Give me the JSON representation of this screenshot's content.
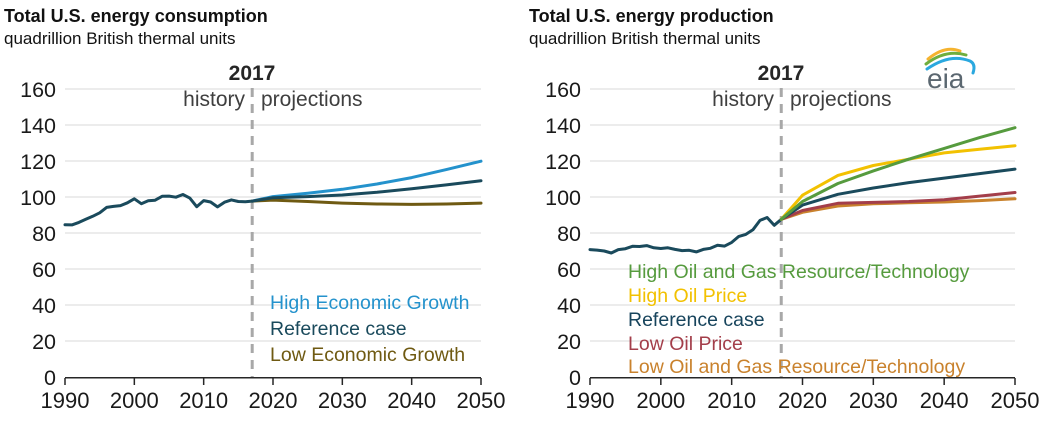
{
  "page": {
    "background": "#ffffff"
  },
  "logo": {
    "text": "eia",
    "text_color": "#5b6770",
    "arc_colors": {
      "yellow": "#f5b32f",
      "green": "#6fae3e",
      "blue": "#2aa8df"
    }
  },
  "chart_data": [
    {
      "type": "line",
      "title": "Total U.S. energy consumption",
      "subtitle": "quadrillion British thermal units",
      "xlabel": "",
      "ylabel": "",
      "xlim": [
        1990,
        2050
      ],
      "ylim": [
        0,
        160
      ],
      "yticks": [
        0,
        20,
        40,
        60,
        80,
        100,
        120,
        140,
        160
      ],
      "xticks": [
        1990,
        2000,
        2010,
        2020,
        2030,
        2040,
        2050
      ],
      "grid": true,
      "colors": {
        "grid": "#d9d9d9",
        "axis": "#262626",
        "tick_label": "#1a1a1a",
        "divider": "#a8a8a8"
      },
      "divider": {
        "year": 2017,
        "label": "2017",
        "left_label": "history",
        "right_label": "projections"
      },
      "series": [
        {
          "name": "history",
          "color": "#1a4a5c",
          "x": [
            1990,
            1991,
            1992,
            1993,
            1994,
            1995,
            1996,
            1997,
            1998,
            1999,
            2000,
            2001,
            2002,
            2003,
            2004,
            2005,
            2006,
            2007,
            2008,
            2009,
            2010,
            2011,
            2012,
            2013,
            2014,
            2015,
            2016,
            2017
          ],
          "values": [
            84.6,
            84.5,
            85.9,
            87.6,
            89.3,
            91.2,
            94.2,
            94.8,
            95.2,
            96.8,
            99.0,
            96.3,
            97.9,
            98.2,
            100.4,
            100.5,
            99.9,
            101.4,
            99.4,
            94.6,
            98.0,
            97.2,
            94.5,
            97.1,
            98.4,
            97.5,
            97.4,
            97.7
          ]
        },
        {
          "name": "High Economic Growth",
          "color": "#2492cc",
          "x": [
            2017,
            2020,
            2025,
            2030,
            2035,
            2040,
            2045,
            2050
          ],
          "values": [
            97.7,
            100.2,
            102.1,
            104.3,
            107.2,
            110.8,
            115.2,
            119.9
          ]
        },
        {
          "name": "Low Economic Growth",
          "color": "#6f5a12",
          "x": [
            2017,
            2020,
            2025,
            2030,
            2035,
            2040,
            2045,
            2050
          ],
          "values": [
            97.7,
            98.3,
            97.5,
            96.6,
            96.1,
            95.9,
            96.1,
            96.6
          ]
        },
        {
          "name": "Reference case",
          "color": "#1a4a5c",
          "x": [
            2017,
            2020,
            2025,
            2030,
            2035,
            2040,
            2045,
            2050
          ],
          "values": [
            97.7,
            99.6,
            100.2,
            101.1,
            102.6,
            104.6,
            106.7,
            109.0
          ]
        }
      ],
      "legend": [
        {
          "label": "High Economic Growth",
          "color": "#2492cc"
        },
        {
          "label": "Reference case",
          "color": "#1a4a5c"
        },
        {
          "label": "Low Economic Growth",
          "color": "#6f5a12"
        }
      ],
      "legend_position": "lower right"
    },
    {
      "type": "line",
      "title": "Total U.S. energy production",
      "subtitle": "quadrillion British thermal units",
      "xlabel": "",
      "ylabel": "",
      "xlim": [
        1990,
        2050
      ],
      "ylim": [
        0,
        160
      ],
      "yticks": [
        0,
        20,
        40,
        60,
        80,
        100,
        120,
        140,
        160
      ],
      "xticks": [
        1990,
        2000,
        2010,
        2020,
        2030,
        2040,
        2050
      ],
      "grid": true,
      "colors": {
        "grid": "#d9d9d9",
        "axis": "#262626",
        "tick_label": "#1a1a1a",
        "divider": "#a8a8a8"
      },
      "divider": {
        "year": 2017,
        "label": "2017",
        "left_label": "history",
        "right_label": "projections"
      },
      "series": [
        {
          "name": "history",
          "color": "#1a4a5c",
          "x": [
            1990,
            1991,
            1992,
            1993,
            1994,
            1995,
            1996,
            1997,
            1998,
            1999,
            2000,
            2001,
            2002,
            2003,
            2004,
            2005,
            2006,
            2007,
            2008,
            2009,
            2010,
            2011,
            2012,
            2013,
            2014,
            2015,
            2016,
            2017
          ],
          "values": [
            70.8,
            70.5,
            70.0,
            68.9,
            70.8,
            71.3,
            72.6,
            72.5,
            73.0,
            71.8,
            71.4,
            71.8,
            70.9,
            70.2,
            70.4,
            69.5,
            70.9,
            71.5,
            73.2,
            72.7,
            74.8,
            78.1,
            79.2,
            81.8,
            87.0,
            88.6,
            84.3,
            87.6
          ]
        },
        {
          "name": "Low Oil and Gas Resource/Technology",
          "color": "#c9822d",
          "x": [
            2017,
            2020,
            2025,
            2030,
            2035,
            2040,
            2045,
            2050
          ],
          "values": [
            87.6,
            91.5,
            95.0,
            96.2,
            96.8,
            97.2,
            98.0,
            99.0
          ]
        },
        {
          "name": "Low Oil Price",
          "color": "#a33e4a",
          "x": [
            2017,
            2020,
            2025,
            2030,
            2035,
            2040,
            2045,
            2050
          ],
          "values": [
            87.6,
            92.5,
            96.5,
            97.0,
            97.5,
            98.5,
            100.5,
            102.5
          ]
        },
        {
          "name": "Reference case",
          "color": "#1a4a5c",
          "x": [
            2017,
            2020,
            2025,
            2030,
            2035,
            2040,
            2045,
            2050
          ],
          "values": [
            87.6,
            95.5,
            101.5,
            105.0,
            108.0,
            110.5,
            113.0,
            115.5
          ]
        },
        {
          "name": "High Oil Price",
          "color": "#f2c101",
          "x": [
            2017,
            2020,
            2025,
            2030,
            2035,
            2040,
            2045,
            2050
          ],
          "values": [
            87.6,
            101.0,
            112.0,
            117.5,
            121.0,
            124.5,
            126.5,
            128.5
          ]
        },
        {
          "name": "High Oil and Gas Resource/Technology",
          "color": "#569b3e",
          "x": [
            2017,
            2020,
            2025,
            2030,
            2035,
            2040,
            2045,
            2050
          ],
          "values": [
            87.6,
            97.5,
            107.5,
            114.5,
            121.0,
            127.0,
            133.0,
            138.5
          ]
        }
      ],
      "legend": [
        {
          "label": "High Oil and Gas Resource/Technology",
          "color": "#569b3e"
        },
        {
          "label": "High Oil Price",
          "color": "#f2c101"
        },
        {
          "label": "Reference case",
          "color": "#17445c"
        },
        {
          "label": "Low Oil Price",
          "color": "#a33e4a"
        },
        {
          "label": "Low Oil and Gas Resource/Technology",
          "color": "#c9822d"
        }
      ],
      "legend_position": "lower right"
    }
  ]
}
